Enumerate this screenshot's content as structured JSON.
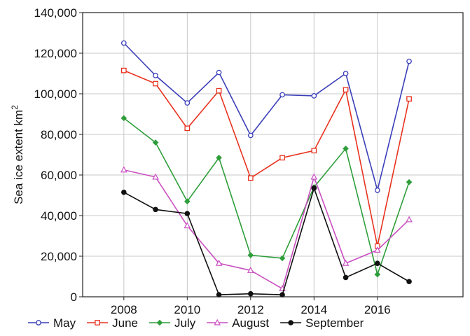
{
  "chart_data": {
    "type": "line",
    "title": "",
    "xlabel": "",
    "ylabel": "Sea ice extent km",
    "ylabel_superscript": "2",
    "x": [
      2008,
      2009,
      2010,
      2011,
      2012,
      2013,
      2014,
      2015,
      2016,
      2017
    ],
    "xlim": [
      2006.7,
      2018.7
    ],
    "ylim": [
      0,
      140000
    ],
    "xticks": [
      2008,
      2010,
      2012,
      2014,
      2016
    ],
    "yticks": [
      0,
      20000,
      40000,
      60000,
      80000,
      100000,
      120000,
      140000
    ],
    "xtick_labels": [
      "2008",
      "2010",
      "2012",
      "2014",
      "2016"
    ],
    "ytick_labels": [
      "0",
      "20,000",
      "40,000",
      "60,000",
      "80,000",
      "100,000",
      "120,000",
      "140,000"
    ],
    "grid": true,
    "legend_position": "bottom",
    "series": [
      {
        "name": "May",
        "color": "#3b3fb8",
        "marker": "circle",
        "values": [
          125000,
          109000,
          95500,
          110500,
          79500,
          99500,
          99000,
          110000,
          52500,
          116000
        ]
      },
      {
        "name": "June",
        "color": "#e8321e",
        "marker": "square",
        "values": [
          111500,
          105000,
          83000,
          101500,
          58500,
          68500,
          72000,
          102000,
          25000,
          97500
        ]
      },
      {
        "name": "July",
        "color": "#2e9e3a",
        "marker": "diamond",
        "values": [
          88000,
          76000,
          47000,
          68500,
          20500,
          19000,
          54000,
          73000,
          11000,
          56500
        ]
      },
      {
        "name": "August",
        "color": "#c94fc0",
        "marker": "triangle",
        "values": [
          62500,
          59000,
          35000,
          16500,
          13000,
          4000,
          59000,
          16500,
          23000,
          38000
        ]
      },
      {
        "name": "September",
        "color": "#111111",
        "marker": "dot",
        "values": [
          51500,
          43000,
          41000,
          1000,
          1500,
          1000,
          53500,
          9500,
          16500,
          7500
        ]
      }
    ]
  }
}
